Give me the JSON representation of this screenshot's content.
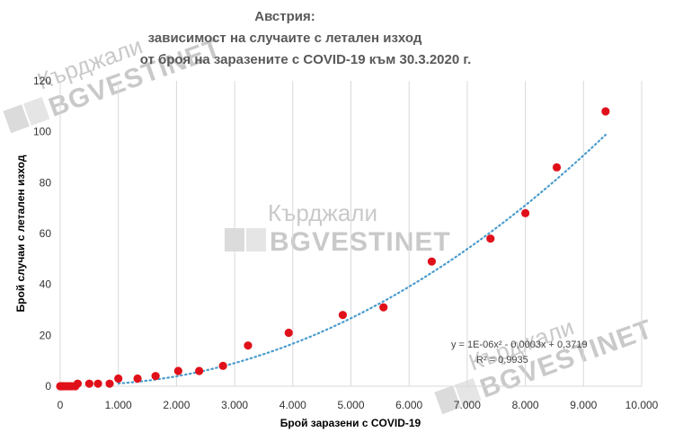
{
  "chart_data": {
    "type": "scatter",
    "title": [
      "Австрия:",
      "зависимост на случаите с летален изход",
      "от броя на заразените с COVID-19 към 30.3.2020 г."
    ],
    "xlabel": "Брой заразени с COVID-19",
    "ylabel": "Брой случаи с летален изход",
    "xlim": [
      0,
      10000
    ],
    "ylim": [
      0,
      120
    ],
    "xticks": [
      0,
      1000,
      2000,
      3000,
      4000,
      5000,
      6000,
      7000,
      8000,
      9000,
      10000
    ],
    "xtick_labels": [
      "0",
      "1.000",
      "2.000",
      "3.000",
      "4.000",
      "5.000",
      "6.000",
      "7.000",
      "8.000",
      "9.000",
      "10.000"
    ],
    "yticks": [
      0,
      20,
      40,
      60,
      80,
      100,
      120
    ],
    "grid": "vertical",
    "points": [
      {
        "x": 0,
        "y": 0
      },
      {
        "x": 20,
        "y": 0
      },
      {
        "x": 50,
        "y": 0
      },
      {
        "x": 100,
        "y": 0
      },
      {
        "x": 150,
        "y": 0
      },
      {
        "x": 200,
        "y": 0
      },
      {
        "x": 260,
        "y": 0
      },
      {
        "x": 300,
        "y": 1
      },
      {
        "x": 500,
        "y": 1
      },
      {
        "x": 650,
        "y": 1
      },
      {
        "x": 850,
        "y": 1
      },
      {
        "x": 1000,
        "y": 3
      },
      {
        "x": 1330,
        "y": 3
      },
      {
        "x": 1640,
        "y": 4
      },
      {
        "x": 2030,
        "y": 6
      },
      {
        "x": 2390,
        "y": 6
      },
      {
        "x": 2800,
        "y": 8
      },
      {
        "x": 3230,
        "y": 16
      },
      {
        "x": 3930,
        "y": 21
      },
      {
        "x": 4860,
        "y": 28
      },
      {
        "x": 5560,
        "y": 31
      },
      {
        "x": 6390,
        "y": 49
      },
      {
        "x": 7400,
        "y": 58
      },
      {
        "x": 8000,
        "y": 68
      },
      {
        "x": 8540,
        "y": 86
      },
      {
        "x": 9380,
        "y": 108
      }
    ],
    "trendline": {
      "type": "polynomial",
      "degree": 2,
      "equation": "y = 1E-06x² - 0,0003x + 0,3719",
      "r_squared": "R² = 0,9935"
    },
    "marker_color": "#e0101a",
    "trend_color": "#4a9ccd"
  },
  "watermark": {
    "small": "Кърджали",
    "big": "BGVESTINET"
  }
}
